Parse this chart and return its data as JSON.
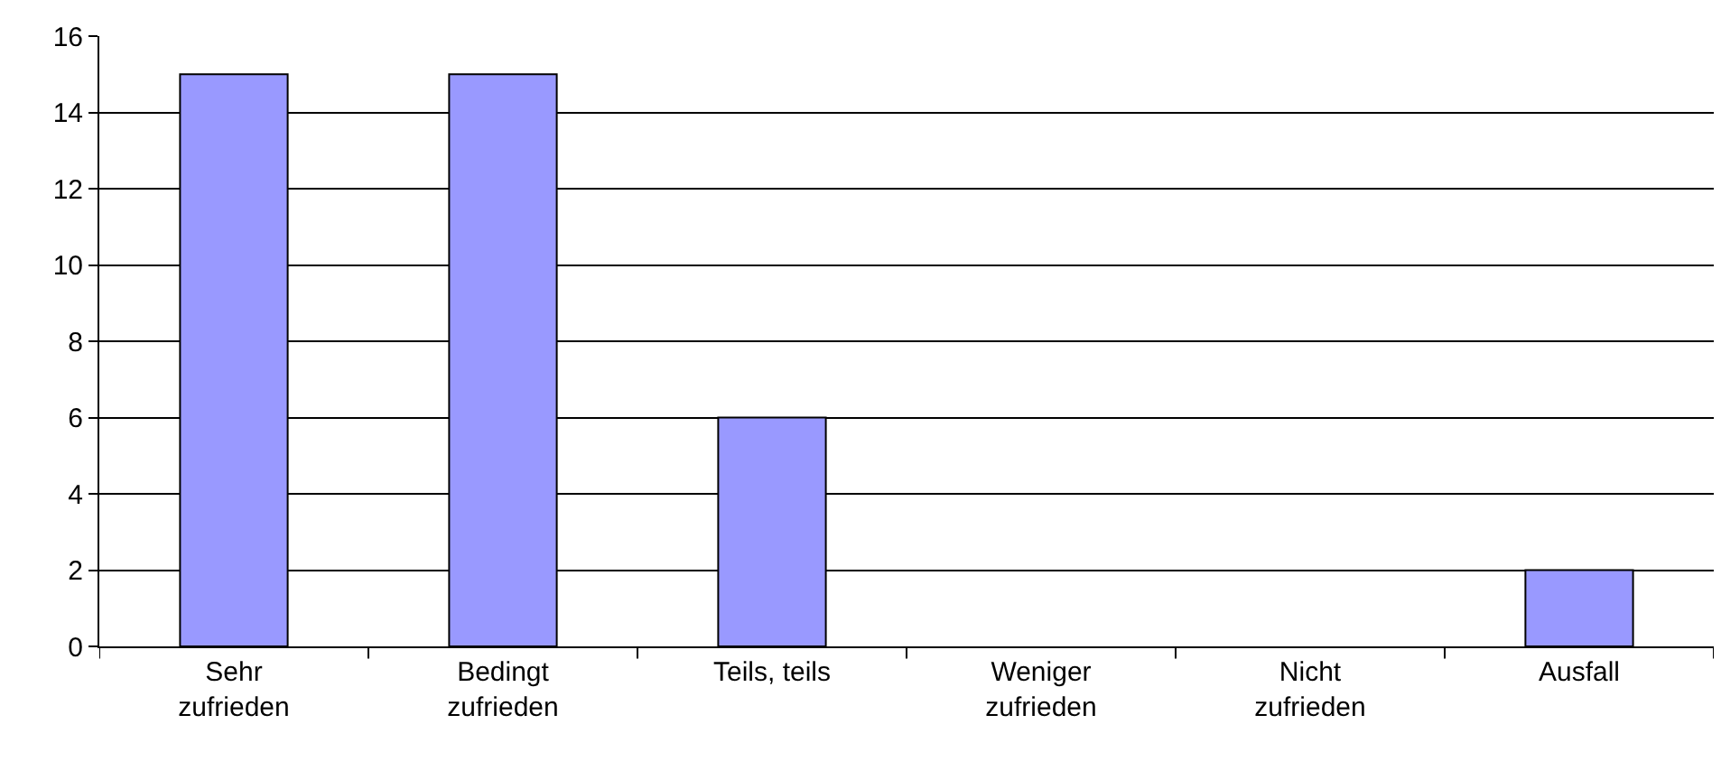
{
  "chart_data": {
    "type": "bar",
    "categories": [
      "Sehr zufrieden",
      "Bedingt zufrieden",
      "Teils, teils",
      "Weniger zufrieden",
      "Nicht zufrieden",
      "Ausfall"
    ],
    "values": [
      15,
      15,
      6,
      0,
      0,
      2
    ],
    "color": "#9999ff",
    "ylim": [
      0,
      16
    ],
    "yticks": [
      0,
      2,
      4,
      6,
      8,
      10,
      12,
      14,
      16
    ],
    "grid": "y"
  }
}
